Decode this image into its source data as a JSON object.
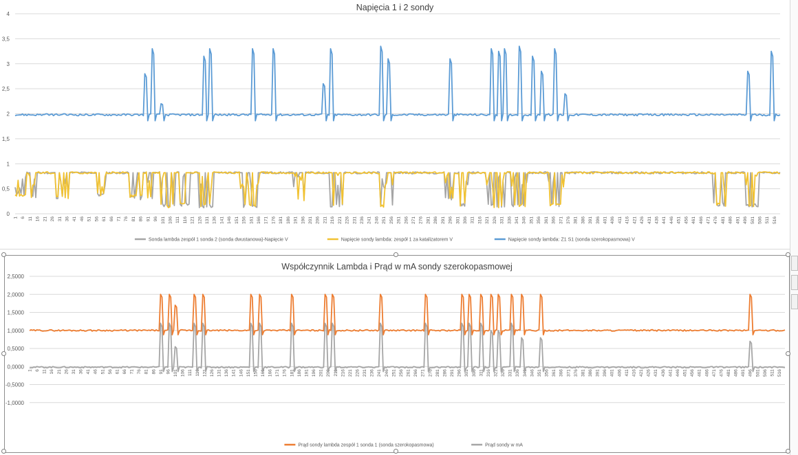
{
  "chart_data": [
    {
      "type": "line",
      "title": "Napięcia 1 i 2 sondy",
      "ylim": [
        0,
        4
      ],
      "yticks": [
        "0",
        "0,5",
        "1",
        "1,5",
        "2",
        "2,5",
        "3",
        "3,5",
        "4"
      ],
      "x_range": [
        1,
        520
      ],
      "xticks_start": 1,
      "xticks_step": 5,
      "grid": true,
      "legend_position": "bottom",
      "series": [
        {
          "name": "Sonda lambda zespół 1 sonda 2 (sonda dwustanowa)-Napięcie V",
          "color": "#a5a5a5",
          "base": 0.82,
          "segments": [
            [
              0,
              7,
              0.35
            ],
            [
              10,
              14,
              0.3
            ],
            [
              28,
              36,
              0.28
            ],
            [
              56,
              61,
              0.35
            ],
            [
              78,
              86,
              0.28
            ],
            [
              90,
              93,
              0.25
            ],
            [
              99,
              108,
              0.12
            ],
            [
              112,
              118,
              0.15
            ],
            [
              125,
              134,
              0.12
            ],
            [
              153,
              165,
              0.12
            ],
            [
              189,
              196,
              0.25
            ],
            [
              214,
              222,
              0.12
            ],
            [
              248,
              256,
              0.12
            ],
            [
              292,
              297,
              0.25
            ],
            [
              302,
              307,
              0.15
            ],
            [
              320,
              332,
              0.12
            ],
            [
              337,
              347,
              0.12
            ],
            [
              362,
              372,
              0.12
            ],
            [
              474,
              482,
              0.15
            ],
            [
              496,
              504,
              0.12
            ]
          ]
        },
        {
          "name": "Napięcie sondy lambda: zespół 1 za katalizatorem V",
          "color": "#f1c232",
          "base": 0.82,
          "segments": [
            [
              0,
              7,
              0.35
            ],
            [
              10,
              14,
              0.32
            ],
            [
              28,
              36,
              0.28
            ],
            [
              56,
              61,
              0.35
            ],
            [
              78,
              86,
              0.3
            ],
            [
              90,
              93,
              0.28
            ],
            [
              99,
              108,
              0.12
            ],
            [
              112,
              118,
              0.15
            ],
            [
              125,
              134,
              0.12
            ],
            [
              153,
              165,
              0.12
            ],
            [
              189,
              196,
              0.25
            ],
            [
              214,
              222,
              0.12
            ],
            [
              248,
              256,
              0.12
            ],
            [
              292,
              297,
              0.25
            ],
            [
              302,
              307,
              0.15
            ],
            [
              320,
              332,
              0.12
            ],
            [
              337,
              347,
              0.12
            ],
            [
              362,
              372,
              0.12
            ],
            [
              474,
              482,
              0.15
            ],
            [
              496,
              504,
              0.12
            ]
          ]
        },
        {
          "name": "Napięcie sondy lambda: Z1 S1 (sonda szerokopasmowa) V",
          "color": "#5b9bd5",
          "base": 1.98,
          "spikes": [
            [
              88,
              2.8
            ],
            [
              93,
              3.3
            ],
            [
              99,
              2.2
            ],
            [
              128,
              3.15
            ],
            [
              132,
              3.3
            ],
            [
              161,
              3.3
            ],
            [
              175,
              3.3
            ],
            [
              209,
              2.6
            ],
            [
              214,
              3.3
            ],
            [
              248,
              3.35
            ],
            [
              253,
              3.1
            ],
            [
              295,
              3.1
            ],
            [
              323,
              3.3
            ],
            [
              328,
              3.25
            ],
            [
              332,
              3.3
            ],
            [
              342,
              3.35
            ],
            [
              351,
              3.15
            ],
            [
              357,
              2.85
            ],
            [
              366,
              3.3
            ],
            [
              373,
              2.4
            ],
            [
              497,
              2.85
            ],
            [
              513,
              3.25
            ]
          ]
        }
      ]
    },
    {
      "type": "line",
      "title": "Współczynnik Lambda i Prąd w mA sondy szerokopasmowej",
      "ylim": [
        -1.5,
        2.5
      ],
      "yticks": [
        "-1,0000",
        "-0,5000",
        "0,0000",
        "0,5000",
        "1,0000",
        "1,5000",
        "2,0000",
        "2,5000"
      ],
      "x_range": [
        1,
        520
      ],
      "xticks_start": 1,
      "xticks_step": 5,
      "grid": true,
      "legend_position": "bottom",
      "series": [
        {
          "name": "Prąd sondy lambda zespół 1 sonda 1 (sonda szerokopasmowa)",
          "color": "#ed7d31",
          "base": 1.0,
          "spikes": [
            [
              90,
              2.0
            ],
            [
              96,
              2.0
            ],
            [
              100,
              1.7
            ],
            [
              113,
              2.0
            ],
            [
              119,
              2.0
            ],
            [
              152,
              2.0
            ],
            [
              158,
              2.0
            ],
            [
              180,
              2.0
            ],
            [
              203,
              2.0
            ],
            [
              208,
              2.0
            ],
            [
              241,
              2.0
            ],
            [
              272,
              2.0
            ],
            [
              297,
              2.0
            ],
            [
              302,
              2.0
            ],
            [
              310,
              2.0
            ],
            [
              317,
              2.0
            ],
            [
              322,
              2.0
            ],
            [
              331,
              2.0
            ],
            [
              338,
              2.0
            ],
            [
              351,
              2.0
            ],
            [
              495,
              2.0
            ]
          ]
        },
        {
          "name": "Prąd sondy w mA",
          "color": "#a5a5a5",
          "base": -0.02,
          "spikes": [
            [
              90,
              1.2
            ],
            [
              96,
              1.2
            ],
            [
              100,
              0.55
            ],
            [
              113,
              1.2
            ],
            [
              119,
              1.2
            ],
            [
              152,
              1.2
            ],
            [
              158,
              1.2
            ],
            [
              180,
              1.2
            ],
            [
              203,
              1.2
            ],
            [
              208,
              1.2
            ],
            [
              241,
              1.2
            ],
            [
              272,
              1.2
            ],
            [
              297,
              1.2
            ],
            [
              302,
              1.2
            ],
            [
              310,
              1.2
            ],
            [
              317,
              1.0
            ],
            [
              322,
              1.0
            ],
            [
              331,
              1.2
            ],
            [
              338,
              0.8
            ],
            [
              351,
              0.8
            ],
            [
              495,
              0.7
            ]
          ]
        }
      ]
    }
  ]
}
